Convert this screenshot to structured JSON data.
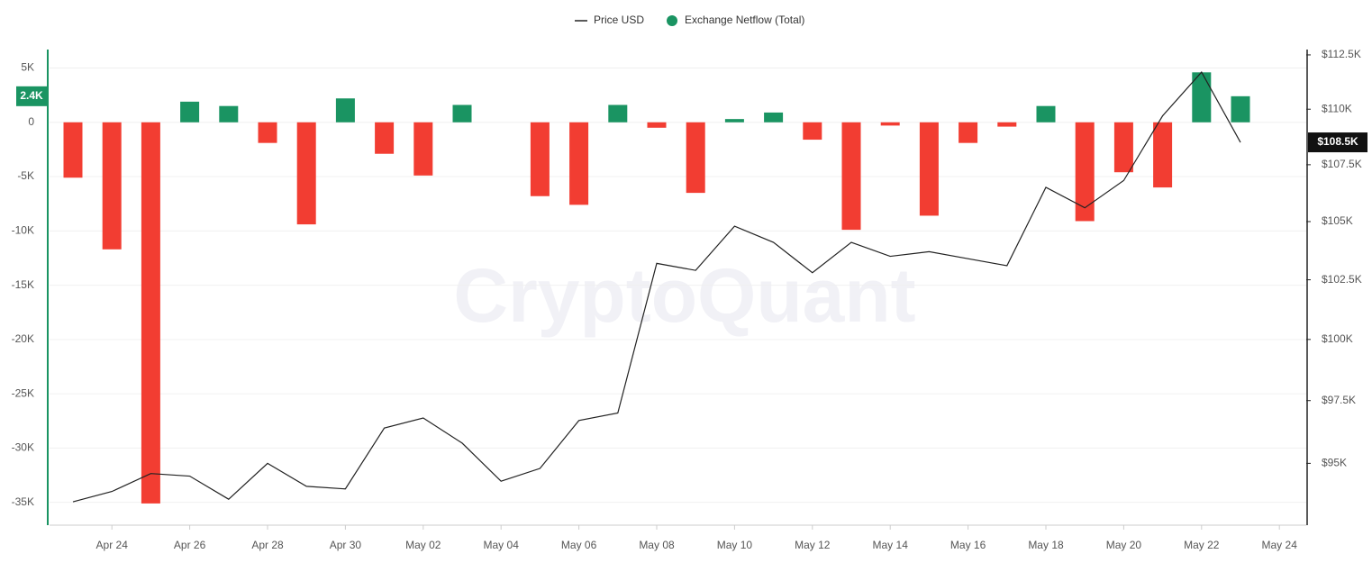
{
  "chart_data": {
    "type": "bar_line",
    "watermark": "CryptoQuant",
    "categories": [
      null,
      "Apr 24",
      null,
      "Apr 26",
      null,
      "Apr 28",
      null,
      "Apr 30",
      null,
      "May 02",
      null,
      "May 04",
      null,
      "May 06",
      null,
      "May 08",
      null,
      "May 10",
      null,
      "May 12",
      null,
      "May 14",
      null,
      "May 16",
      null,
      "May 18",
      null,
      "May 20",
      null,
      "May 22",
      null,
      "May 24"
    ],
    "series": [
      {
        "name": "Price USD",
        "type": "line",
        "axis": "y2",
        "color": "#222222",
        "values": [
          93500,
          93900,
          94600,
          94500,
          93600,
          95000,
          94100,
          94000,
          96400,
          96800,
          95800,
          94300,
          94800,
          96700,
          97000,
          103200,
          102900,
          104800,
          104100,
          102800,
          104100,
          103500,
          103700,
          103400,
          103100,
          106500,
          105600,
          106800,
          109700,
          111700,
          108500,
          null
        ]
      },
      {
        "name": "Exchange Netflow (Total)",
        "type": "bar",
        "color": "#1a9462",
        "negative_color": "#f23d32",
        "values": [
          -5100,
          -11700,
          -35100,
          1900,
          1500,
          -1900,
          -9400,
          2200,
          -2900,
          -4900,
          1600,
          null,
          -6800,
          -7600,
          1600,
          -500,
          -6500,
          300,
          900,
          -1600,
          -9900,
          -300,
          -8600,
          -1900,
          -400,
          1500,
          -9100,
          -4600,
          -6000,
          4600,
          2400,
          null
        ]
      }
    ],
    "ylim": [
      -37100,
      6700
    ],
    "yticks": [
      {
        "value": 5000,
        "label": "5K"
      },
      0,
      {
        "value": -5000,
        "label": "-5K"
      },
      {
        "value": -10000,
        "label": "-10K"
      },
      {
        "value": -15000,
        "label": "-15K"
      },
      {
        "value": -20000,
        "label": "-20K"
      },
      {
        "value": -25000,
        "label": "-25K"
      },
      {
        "value": -30000,
        "label": "-30K"
      },
      {
        "value": -35000,
        "label": "-35K"
      }
    ],
    "y2lim": [
      92600,
      112750
    ],
    "y2log": true,
    "y2ticks": [
      {
        "value": 112500,
        "label": "$112.5K"
      },
      {
        "value": 110000,
        "label": "$110K"
      },
      {
        "value": 107500,
        "label": "$107.5K"
      },
      {
        "value": 105000,
        "label": "$105K"
      },
      {
        "value": 102500,
        "label": "$102.5K"
      },
      {
        "value": 100000,
        "label": "$100K"
      },
      {
        "value": 97500,
        "label": "$97.5K"
      },
      {
        "value": 95000,
        "label": "$95K"
      }
    ],
    "grid": true,
    "legend": "top",
    "last_value_labels": {
      "y": {
        "value": 2400,
        "label": "2.4K"
      },
      "y2": {
        "value": 108500,
        "label": "$108.5K"
      }
    }
  }
}
